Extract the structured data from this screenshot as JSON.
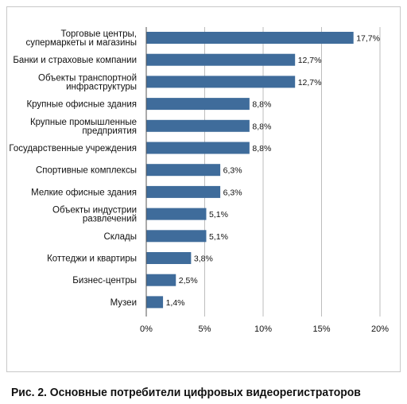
{
  "caption": "Рис. 2. Основные потребители цифровых видеорегистраторов",
  "chart_data": {
    "type": "bar",
    "orientation": "horizontal",
    "title": "",
    "xlabel": "",
    "ylabel": "",
    "xlim": [
      0,
      20
    ],
    "ticks": [
      0,
      5,
      10,
      15,
      20
    ],
    "tick_labels": [
      "0%",
      "5%",
      "10%",
      "15%",
      "20%"
    ],
    "bar_color": "#3f6c9b",
    "grid": "vertical",
    "categories": [
      "Торговые центры, супермаркеты и магазины",
      "Банки и страховые компании",
      "Объекты транспортной инфраструктуры",
      "Крупные офисные здания",
      "Крупные промышленные предприятия",
      "Государственные учреждения",
      "Спортивные комплексы",
      "Мелкие офисные здания",
      "Объекты индустрии развлечений",
      "Склады",
      "Коттеджи и квартиры",
      "Бизнес-центры",
      "Музеи"
    ],
    "category_lines": [
      [
        "Торговые центры,",
        "супермаркеты и магазины"
      ],
      [
        "Банки и страховые компании"
      ],
      [
        "Объекты транспортной",
        "инфраструктуры"
      ],
      [
        "Крупные офисные здания"
      ],
      [
        "Крупные промышленные",
        "предприятия"
      ],
      [
        "Государственные учреждения"
      ],
      [
        "Спортивные комплексы"
      ],
      [
        "Мелкие офисные здания"
      ],
      [
        "Объекты индустрии",
        "развлечений"
      ],
      [
        "Склады"
      ],
      [
        "Коттеджи и квартиры"
      ],
      [
        "Бизнес-центры"
      ],
      [
        "Музеи"
      ]
    ],
    "values": [
      17.7,
      12.7,
      12.7,
      8.8,
      8.8,
      8.8,
      6.3,
      6.3,
      5.1,
      5.1,
      3.8,
      2.5,
      1.4
    ],
    "value_labels": [
      "17,7%",
      "12,7%",
      "12,7%",
      "8,8%",
      "8,8%",
      "8,8%",
      "6,3%",
      "6,3%",
      "5,1%",
      "5,1%",
      "3,8%",
      "2,5%",
      "1,4%"
    ]
  }
}
